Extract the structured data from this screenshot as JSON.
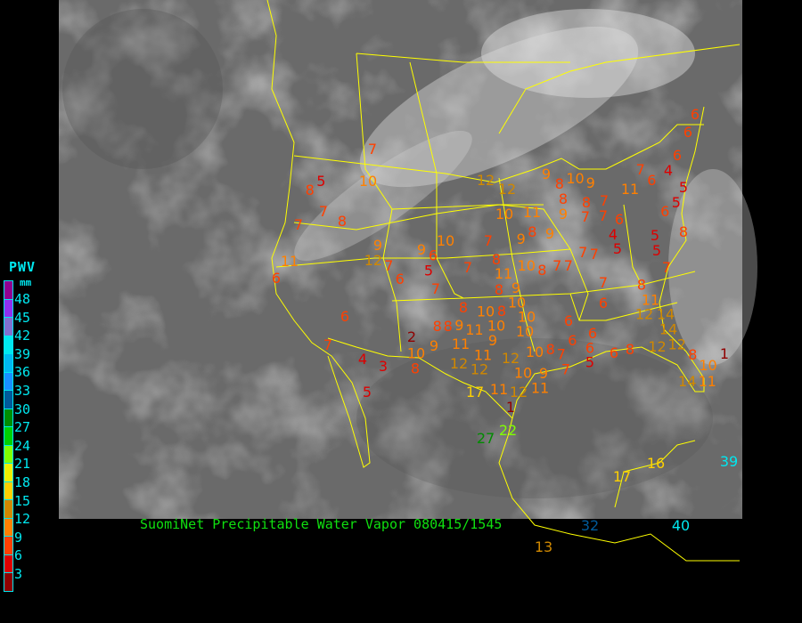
{
  "title": "SuomiNet Precipitable Water Vapor 080415/1545",
  "legend": {
    "title": "PWV",
    "unit": "mm",
    "labels": [
      "48",
      "45",
      "42",
      "39",
      "36",
      "33",
      "30",
      "27",
      "24",
      "21",
      "18",
      "15",
      "12",
      "9",
      "6",
      "3"
    ],
    "colors": [
      "#900090",
      "#9030f0",
      "#8070d0",
      "#00e8f0",
      "#00b8f0",
      "#1890ff",
      "#005a9a",
      "#008c00",
      "#00d000",
      "#80ff00",
      "#f0f000",
      "#ffd000",
      "#d08800",
      "#ff8000",
      "#ff4000",
      "#dd0000",
      "#900000"
    ]
  },
  "colors": {
    "map_lines": "#ffff00",
    "background": "#000000",
    "imagery_base": "#6a6a6a"
  },
  "stations": [
    7,
    5,
    8,
    10,
    7,
    8,
    7,
    11,
    6,
    9,
    12,
    7,
    6,
    9,
    6,
    5,
    10,
    7,
    8,
    6,
    7,
    4,
    3,
    5,
    2,
    9,
    10,
    8,
    8,
    9,
    11,
    12,
    12,
    11,
    8,
    10,
    8,
    11,
    9,
    10,
    10,
    10,
    9,
    10,
    12,
    10,
    10,
    9,
    11,
    12,
    11,
    17,
    1,
    27,
    22,
    7,
    9,
    8,
    9,
    10,
    11,
    12,
    12,
    7,
    8,
    11,
    8,
    10,
    8,
    7,
    7,
    7,
    6,
    8,
    11,
    12,
    14,
    7,
    6,
    6,
    6,
    6,
    5,
    8,
    7,
    7,
    6,
    8,
    12,
    14,
    12,
    8,
    10,
    14,
    11,
    1,
    9,
    10,
    9,
    8,
    8,
    8,
    7,
    9,
    7,
    7,
    11,
    7,
    6,
    4,
    5,
    5,
    6,
    8,
    6,
    4,
    5,
    5,
    5,
    7,
    7,
    6,
    6,
    6,
    17,
    16,
    39,
    32,
    40,
    13
  ]
}
